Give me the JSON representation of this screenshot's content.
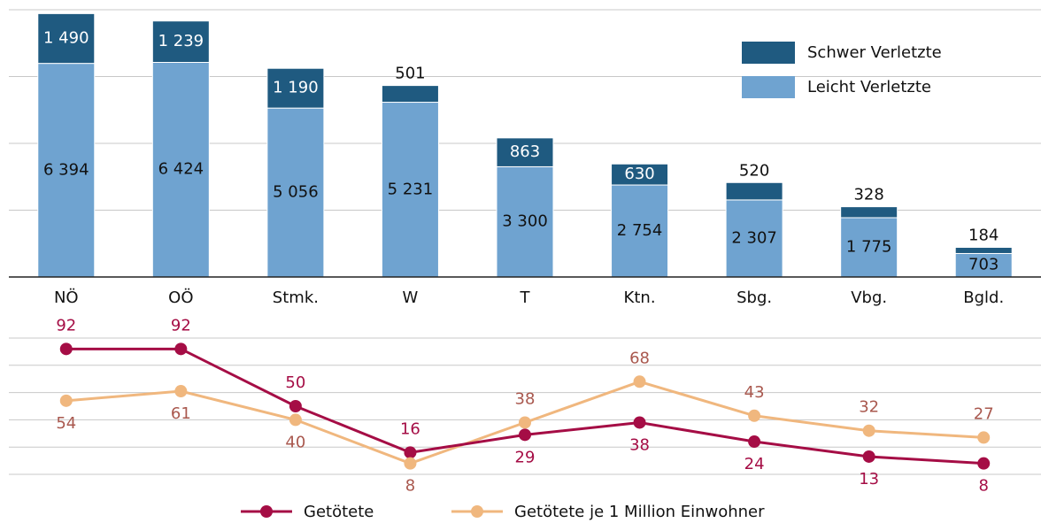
{
  "chart_data": [
    {
      "type": "bar",
      "stacked": true,
      "categories": [
        "NÖ",
        "OÖ",
        "Stmk.",
        "W",
        "T",
        "Ktn.",
        "Sbg.",
        "Vbg.",
        "Bgld."
      ],
      "series": [
        {
          "name": "Leicht Verletzte",
          "color": "#6fa3d0",
          "values": [
            6394,
            6424,
            5056,
            5231,
            3300,
            2754,
            2307,
            1775,
            703
          ],
          "value_labels": [
            "6 394",
            "6 424",
            "5 056",
            "5 231",
            "3 300",
            "2 754",
            "2 307",
            "1 775",
            "703"
          ]
        },
        {
          "name": "Schwer Verletzte",
          "color": "#1f5a80",
          "values": [
            1490,
            1239,
            1190,
            501,
            863,
            630,
            520,
            328,
            184
          ],
          "value_labels": [
            "1 490",
            "1 239",
            "1 190",
            "501",
            "863",
            "630",
            "520",
            "328",
            "184"
          ]
        }
      ],
      "ylim": [
        0,
        8000
      ],
      "yticks": [
        0,
        2000,
        4000,
        6000,
        8000
      ],
      "grid": true,
      "legend": "top-right"
    },
    {
      "type": "line",
      "series": [
        {
          "name": "Getötete",
          "color": "#a50d45",
          "label_color": "#a50d45",
          "values": [
            92,
            92,
            50,
            16,
            29,
            38,
            24,
            13,
            8
          ]
        },
        {
          "name": "Getötete je 1 Million Einwohner",
          "color": "#f0b77e",
          "label_color": "#a9584e",
          "values": [
            54,
            61,
            40,
            8,
            38,
            68,
            43,
            32,
            27
          ]
        }
      ],
      "ylim": [
        0,
        100
      ],
      "yticks": [
        0,
        20,
        40,
        60,
        80,
        100
      ],
      "grid": true,
      "legend": "bottom"
    }
  ]
}
